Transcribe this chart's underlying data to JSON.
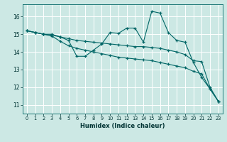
{
  "xlabel": "Humidex (Indice chaleur)",
  "background_color": "#cce8e4",
  "grid_color": "#ffffff",
  "line_color": "#006666",
  "xlim": [
    -0.5,
    23.5
  ],
  "ylim": [
    10.5,
    16.7
  ],
  "yticks": [
    11,
    12,
    13,
    14,
    15,
    16
  ],
  "xticks": [
    0,
    1,
    2,
    3,
    4,
    5,
    6,
    7,
    8,
    9,
    10,
    11,
    12,
    13,
    14,
    15,
    16,
    17,
    18,
    19,
    20,
    21,
    22,
    23
  ],
  "line1_x": [
    0,
    1,
    2,
    3,
    4,
    5,
    6,
    7,
    8,
    9,
    10,
    11,
    12,
    13,
    14,
    15,
    16,
    17,
    18,
    19,
    20,
    21,
    22,
    23
  ],
  "line1_y": [
    15.2,
    15.1,
    15.0,
    15.0,
    14.85,
    14.65,
    13.75,
    13.75,
    14.1,
    14.45,
    15.1,
    15.05,
    15.35,
    15.35,
    14.55,
    16.3,
    16.2,
    15.1,
    14.65,
    14.55,
    13.4,
    12.55,
    11.9,
    11.2
  ],
  "line2_x": [
    0,
    1,
    2,
    3,
    4,
    5,
    6,
    7,
    8,
    9,
    10,
    11,
    12,
    13,
    14,
    15,
    16,
    17,
    18,
    19,
    20,
    21,
    22,
    23
  ],
  "line2_y": [
    15.2,
    15.1,
    15.0,
    14.95,
    14.85,
    14.75,
    14.65,
    14.6,
    14.55,
    14.5,
    14.45,
    14.4,
    14.35,
    14.3,
    14.3,
    14.25,
    14.2,
    14.1,
    14.0,
    13.85,
    13.5,
    13.45,
    12.0,
    11.2
  ],
  "line3_x": [
    0,
    1,
    2,
    3,
    4,
    5,
    6,
    7,
    8,
    9,
    10,
    11,
    12,
    13,
    14,
    15,
    16,
    17,
    18,
    19,
    20,
    21,
    22,
    23
  ],
  "line3_y": [
    15.2,
    15.1,
    15.0,
    14.9,
    14.6,
    14.35,
    14.2,
    14.1,
    14.0,
    13.9,
    13.8,
    13.7,
    13.65,
    13.6,
    13.55,
    13.5,
    13.4,
    13.3,
    13.2,
    13.1,
    12.9,
    12.75,
    11.9,
    11.2
  ]
}
